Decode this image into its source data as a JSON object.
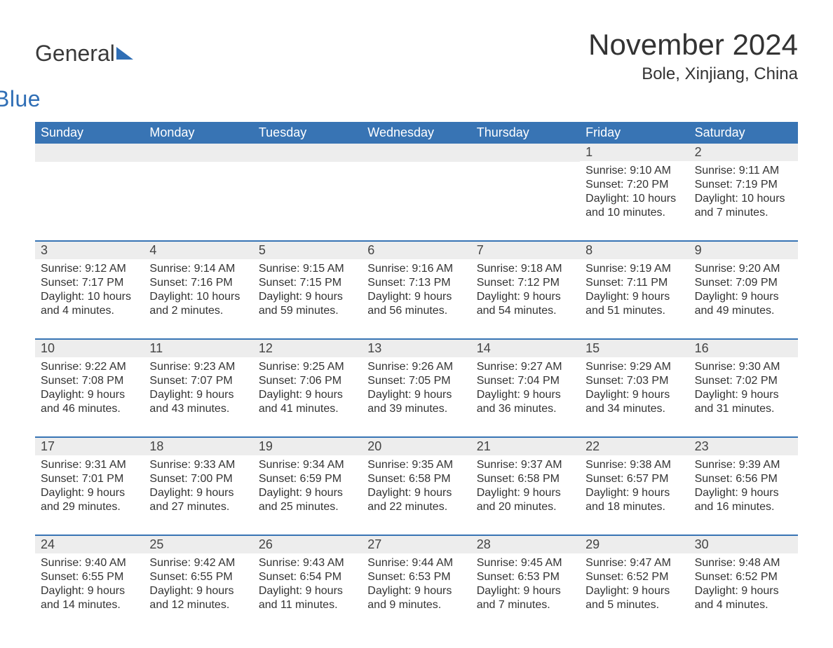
{
  "brand": {
    "part1": "General",
    "part2": "Blue"
  },
  "title": "November 2024",
  "location": "Bole, Xinjiang, China",
  "colors": {
    "header_bg": "#3874b4",
    "header_text": "#ffffff",
    "daynum_bg": "#ededed",
    "border": "#3874b4",
    "text": "#333333",
    "brand_blue": "#2f6eb5"
  },
  "day_headers": [
    "Sunday",
    "Monday",
    "Tuesday",
    "Wednesday",
    "Thursday",
    "Friday",
    "Saturday"
  ],
  "weeks": [
    [
      {
        "blank": true
      },
      {
        "blank": true
      },
      {
        "blank": true
      },
      {
        "blank": true
      },
      {
        "blank": true
      },
      {
        "num": "1",
        "sunrise": "Sunrise: 9:10 AM",
        "sunset": "Sunset: 7:20 PM",
        "daylight": "Daylight: 10 hours and 10 minutes."
      },
      {
        "num": "2",
        "sunrise": "Sunrise: 9:11 AM",
        "sunset": "Sunset: 7:19 PM",
        "daylight": "Daylight: 10 hours and 7 minutes."
      }
    ],
    [
      {
        "num": "3",
        "sunrise": "Sunrise: 9:12 AM",
        "sunset": "Sunset: 7:17 PM",
        "daylight": "Daylight: 10 hours and 4 minutes."
      },
      {
        "num": "4",
        "sunrise": "Sunrise: 9:14 AM",
        "sunset": "Sunset: 7:16 PM",
        "daylight": "Daylight: 10 hours and 2 minutes."
      },
      {
        "num": "5",
        "sunrise": "Sunrise: 9:15 AM",
        "sunset": "Sunset: 7:15 PM",
        "daylight": "Daylight: 9 hours and 59 minutes."
      },
      {
        "num": "6",
        "sunrise": "Sunrise: 9:16 AM",
        "sunset": "Sunset: 7:13 PM",
        "daylight": "Daylight: 9 hours and 56 minutes."
      },
      {
        "num": "7",
        "sunrise": "Sunrise: 9:18 AM",
        "sunset": "Sunset: 7:12 PM",
        "daylight": "Daylight: 9 hours and 54 minutes."
      },
      {
        "num": "8",
        "sunrise": "Sunrise: 9:19 AM",
        "sunset": "Sunset: 7:11 PM",
        "daylight": "Daylight: 9 hours and 51 minutes."
      },
      {
        "num": "9",
        "sunrise": "Sunrise: 9:20 AM",
        "sunset": "Sunset: 7:09 PM",
        "daylight": "Daylight: 9 hours and 49 minutes."
      }
    ],
    [
      {
        "num": "10",
        "sunrise": "Sunrise: 9:22 AM",
        "sunset": "Sunset: 7:08 PM",
        "daylight": "Daylight: 9 hours and 46 minutes."
      },
      {
        "num": "11",
        "sunrise": "Sunrise: 9:23 AM",
        "sunset": "Sunset: 7:07 PM",
        "daylight": "Daylight: 9 hours and 43 minutes."
      },
      {
        "num": "12",
        "sunrise": "Sunrise: 9:25 AM",
        "sunset": "Sunset: 7:06 PM",
        "daylight": "Daylight: 9 hours and 41 minutes."
      },
      {
        "num": "13",
        "sunrise": "Sunrise: 9:26 AM",
        "sunset": "Sunset: 7:05 PM",
        "daylight": "Daylight: 9 hours and 39 minutes."
      },
      {
        "num": "14",
        "sunrise": "Sunrise: 9:27 AM",
        "sunset": "Sunset: 7:04 PM",
        "daylight": "Daylight: 9 hours and 36 minutes."
      },
      {
        "num": "15",
        "sunrise": "Sunrise: 9:29 AM",
        "sunset": "Sunset: 7:03 PM",
        "daylight": "Daylight: 9 hours and 34 minutes."
      },
      {
        "num": "16",
        "sunrise": "Sunrise: 9:30 AM",
        "sunset": "Sunset: 7:02 PM",
        "daylight": "Daylight: 9 hours and 31 minutes."
      }
    ],
    [
      {
        "num": "17",
        "sunrise": "Sunrise: 9:31 AM",
        "sunset": "Sunset: 7:01 PM",
        "daylight": "Daylight: 9 hours and 29 minutes."
      },
      {
        "num": "18",
        "sunrise": "Sunrise: 9:33 AM",
        "sunset": "Sunset: 7:00 PM",
        "daylight": "Daylight: 9 hours and 27 minutes."
      },
      {
        "num": "19",
        "sunrise": "Sunrise: 9:34 AM",
        "sunset": "Sunset: 6:59 PM",
        "daylight": "Daylight: 9 hours and 25 minutes."
      },
      {
        "num": "20",
        "sunrise": "Sunrise: 9:35 AM",
        "sunset": "Sunset: 6:58 PM",
        "daylight": "Daylight: 9 hours and 22 minutes."
      },
      {
        "num": "21",
        "sunrise": "Sunrise: 9:37 AM",
        "sunset": "Sunset: 6:58 PM",
        "daylight": "Daylight: 9 hours and 20 minutes."
      },
      {
        "num": "22",
        "sunrise": "Sunrise: 9:38 AM",
        "sunset": "Sunset: 6:57 PM",
        "daylight": "Daylight: 9 hours and 18 minutes."
      },
      {
        "num": "23",
        "sunrise": "Sunrise: 9:39 AM",
        "sunset": "Sunset: 6:56 PM",
        "daylight": "Daylight: 9 hours and 16 minutes."
      }
    ],
    [
      {
        "num": "24",
        "sunrise": "Sunrise: 9:40 AM",
        "sunset": "Sunset: 6:55 PM",
        "daylight": "Daylight: 9 hours and 14 minutes."
      },
      {
        "num": "25",
        "sunrise": "Sunrise: 9:42 AM",
        "sunset": "Sunset: 6:55 PM",
        "daylight": "Daylight: 9 hours and 12 minutes."
      },
      {
        "num": "26",
        "sunrise": "Sunrise: 9:43 AM",
        "sunset": "Sunset: 6:54 PM",
        "daylight": "Daylight: 9 hours and 11 minutes."
      },
      {
        "num": "27",
        "sunrise": "Sunrise: 9:44 AM",
        "sunset": "Sunset: 6:53 PM",
        "daylight": "Daylight: 9 hours and 9 minutes."
      },
      {
        "num": "28",
        "sunrise": "Sunrise: 9:45 AM",
        "sunset": "Sunset: 6:53 PM",
        "daylight": "Daylight: 9 hours and 7 minutes."
      },
      {
        "num": "29",
        "sunrise": "Sunrise: 9:47 AM",
        "sunset": "Sunset: 6:52 PM",
        "daylight": "Daylight: 9 hours and 5 minutes."
      },
      {
        "num": "30",
        "sunrise": "Sunrise: 9:48 AM",
        "sunset": "Sunset: 6:52 PM",
        "daylight": "Daylight: 9 hours and 4 minutes."
      }
    ]
  ]
}
